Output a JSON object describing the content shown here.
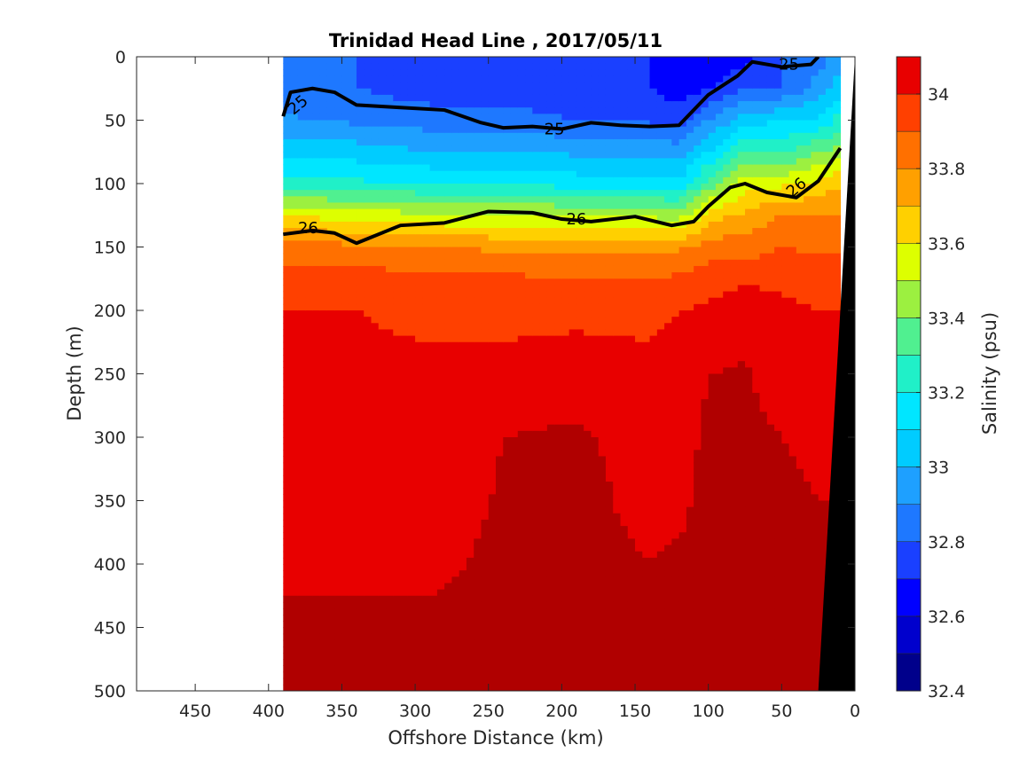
{
  "chart_data": {
    "type": "heatmap",
    "title": "Trinidad Head Line , 2017/05/11",
    "xlabel": "Offshore Distance (km)",
    "ylabel": "Depth (m)",
    "xlim": [
      490,
      0
    ],
    "ylim": [
      0,
      500
    ],
    "x_ticks": [
      "450",
      "400",
      "350",
      "300",
      "250",
      "200",
      "150",
      "100",
      "50",
      "0"
    ],
    "y_ticks": [
      "0",
      "50",
      "100",
      "150",
      "200",
      "250",
      "300",
      "350",
      "400",
      "450",
      "500"
    ],
    "colorbar": {
      "label": "Salinity (psu)",
      "range": [
        32.4,
        34.1
      ],
      "ticks": [
        "32.4",
        "32.6",
        "32.8",
        "33",
        "33.2",
        "33.4",
        "33.6",
        "33.8",
        "34"
      ],
      "levels": [
        32.4,
        32.5,
        32.6,
        32.7,
        32.8,
        32.9,
        33.0,
        33.1,
        33.2,
        33.3,
        33.4,
        33.5,
        33.6,
        33.7,
        33.8,
        33.9,
        34.0,
        34.1
      ],
      "colors": [
        "#00008b",
        "#0000cd",
        "#0000ff",
        "#1a40ff",
        "#1e78ff",
        "#1ea0ff",
        "#00ccff",
        "#00e6ff",
        "#20f0c8",
        "#50f090",
        "#9cf040",
        "#ddff00",
        "#ffd000",
        "#ffa000",
        "#ff7000",
        "#ff4000",
        "#e80000",
        "#b00000"
      ]
    },
    "data_extent_km": [
      390,
      10
    ],
    "contour_labels": [
      "25",
      "25",
      "25",
      "26",
      "26",
      "26"
    ],
    "isopycnals": [
      {
        "value": 25,
        "x": [
          390,
          385,
          370,
          355,
          340,
          310,
          280,
          255,
          240,
          220,
          200,
          180,
          160,
          140,
          120,
          100,
          80,
          70,
          50,
          30,
          25
        ],
        "y": [
          47,
          28,
          25,
          28,
          38,
          40,
          42,
          52,
          56,
          55,
          57,
          52,
          54,
          55,
          54,
          30,
          15,
          4,
          8,
          6,
          0
        ]
      },
      {
        "value": 26,
        "x": [
          390,
          370,
          355,
          340,
          310,
          280,
          250,
          220,
          200,
          180,
          150,
          125,
          110,
          100,
          85,
          75,
          60,
          40,
          25,
          10
        ],
        "y": [
          140,
          137,
          139,
          147,
          133,
          131,
          122,
          123,
          128,
          130,
          126,
          133,
          130,
          118,
          103,
          100,
          107,
          111,
          98,
          72
        ]
      }
    ],
    "salinity_profiles": {
      "x_km": [
        390,
        340,
        290,
        240,
        190,
        140,
        120,
        100,
        75,
        50,
        25,
        10
      ],
      "depth_m": [
        0,
        25,
        50,
        75,
        100,
        125,
        150,
        175,
        200,
        250,
        300,
        350,
        400,
        450,
        500
      ],
      "salinity_psu": [
        [
          32.85,
          32.8,
          32.92,
          33.08,
          33.25,
          33.6,
          33.85,
          33.95,
          34.0,
          34.02,
          34.03,
          34.04,
          34.08,
          34.12,
          34.12
        ],
        [
          32.8,
          32.8,
          32.88,
          33.05,
          33.22,
          33.55,
          33.82,
          33.95,
          34.0,
          34.02,
          34.03,
          34.04,
          34.08,
          34.12,
          34.14
        ],
        [
          32.75,
          32.75,
          32.85,
          33.0,
          33.2,
          33.52,
          33.8,
          33.92,
          33.98,
          34.02,
          34.04,
          34.05,
          34.08,
          34.12,
          34.14
        ],
        [
          32.75,
          32.75,
          32.85,
          33.0,
          33.2,
          33.5,
          33.78,
          33.92,
          33.98,
          34.02,
          34.1,
          34.11,
          34.12,
          34.14,
          34.15
        ],
        [
          32.7,
          32.7,
          32.8,
          32.98,
          33.15,
          33.5,
          33.78,
          33.9,
          33.98,
          34.04,
          34.12,
          34.14,
          34.15,
          34.17,
          34.18
        ],
        [
          32.7,
          32.7,
          32.78,
          32.98,
          33.15,
          33.48,
          33.78,
          33.9,
          33.98,
          34.02,
          34.05,
          34.06,
          34.1,
          34.12,
          34.14
        ],
        [
          32.65,
          32.65,
          32.76,
          32.95,
          33.12,
          33.45,
          33.78,
          33.92,
          34.0,
          34.04,
          34.06,
          34.07,
          34.12,
          34.14,
          34.15
        ],
        [
          32.6,
          32.7,
          32.9,
          33.1,
          33.35,
          33.65,
          33.85,
          33.95,
          34.02,
          34.1,
          34.12,
          34.14,
          34.16,
          34.18,
          34.18
        ],
        [
          32.65,
          32.8,
          33.05,
          33.3,
          33.55,
          33.72,
          33.85,
          33.98,
          34.06,
          34.11,
          34.12,
          34.14,
          34.16,
          34.18,
          34.18
        ],
        [
          32.8,
          32.8,
          33.1,
          33.28,
          33.58,
          33.8,
          33.9,
          33.98,
          34.02,
          34.06,
          34.1,
          34.12,
          34.16,
          34.18,
          34.18
        ],
        [
          32.85,
          32.95,
          33.1,
          33.4,
          33.62,
          33.8,
          33.88,
          33.95,
          34.0,
          34.05,
          34.08,
          34.1,
          34.12,
          34.14,
          34.14
        ],
        [
          32.95,
          33.05,
          33.25,
          33.45,
          33.7,
          33.8,
          33.88,
          33.95,
          34.0,
          34.05,
          34.08,
          34.1,
          34.12,
          34.14,
          34.14
        ]
      ]
    },
    "bathymetry_km": {
      "at_surface": 0,
      "at_500m": 25
    },
    "grid": false
  }
}
